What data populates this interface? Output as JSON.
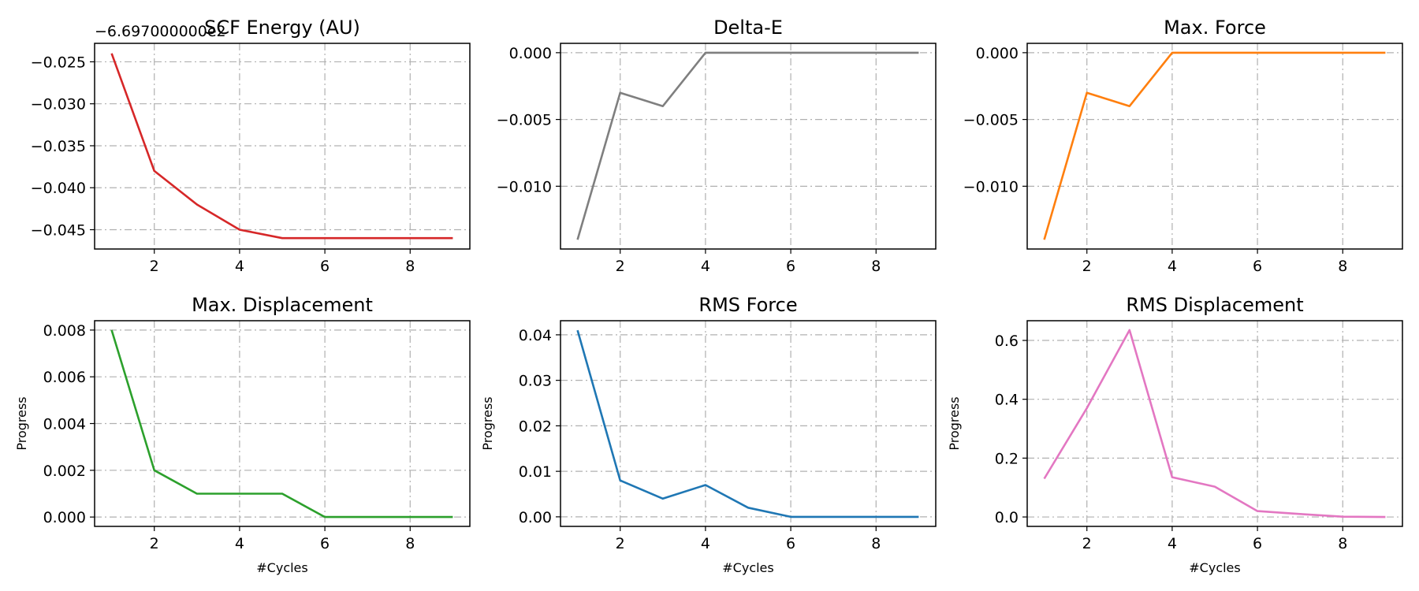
{
  "chart_data": [
    {
      "type": "line",
      "title": "SCF Energy (AU)",
      "offset_text": "−6.697000000e2",
      "xlabel": "",
      "ylabel": "",
      "x": [
        1,
        2,
        3,
        4,
        5,
        6,
        7,
        8,
        9
      ],
      "series": [
        {
          "values": [
            -0.024,
            -0.038,
            -0.042,
            -0.045,
            -0.046,
            -0.046,
            -0.046,
            -0.046,
            -0.046
          ],
          "color": "#d62728"
        }
      ],
      "xlim": [
        0.6,
        9.4
      ],
      "ylim": [
        -0.0473,
        -0.0228
      ],
      "xticks": [
        2,
        4,
        6,
        8
      ],
      "xtick_labels": [
        "2",
        "4",
        "6",
        "8"
      ],
      "yticks": [
        -0.025,
        -0.03,
        -0.035,
        -0.04,
        -0.045
      ],
      "ytick_labels": [
        "−0.025",
        "−0.030",
        "−0.035",
        "−0.040",
        "−0.045"
      ],
      "grid": true
    },
    {
      "type": "line",
      "title": "Delta-E",
      "xlabel": "",
      "ylabel": "",
      "x": [
        1,
        2,
        3,
        4,
        5,
        6,
        7,
        8,
        9
      ],
      "series": [
        {
          "values": [
            -0.014,
            -0.003,
            -0.004,
            0,
            0,
            0,
            0,
            0,
            0
          ],
          "color": "#7f7f7f"
        }
      ],
      "xlim": [
        0.6,
        9.4
      ],
      "ylim": [
        -0.0147,
        0.0007
      ],
      "xticks": [
        2,
        4,
        6,
        8
      ],
      "xtick_labels": [
        "2",
        "4",
        "6",
        "8"
      ],
      "yticks": [
        0,
        -0.005,
        -0.01
      ],
      "ytick_labels": [
        "0.000",
        "−0.005",
        "−0.010"
      ],
      "grid": true
    },
    {
      "type": "line",
      "title": "Max. Force",
      "xlabel": "",
      "ylabel": "",
      "x": [
        1,
        2,
        3,
        4,
        5,
        6,
        7,
        8,
        9
      ],
      "series": [
        {
          "values": [
            -0.014,
            -0.003,
            -0.004,
            0,
            0,
            0,
            0,
            0,
            0
          ],
          "color": "#ff7f0e"
        }
      ],
      "xlim": [
        0.6,
        9.4
      ],
      "ylim": [
        -0.0147,
        0.0007
      ],
      "xticks": [
        2,
        4,
        6,
        8
      ],
      "xtick_labels": [
        "2",
        "4",
        "6",
        "8"
      ],
      "yticks": [
        0,
        -0.005,
        -0.01
      ],
      "ytick_labels": [
        "0.000",
        "−0.005",
        "−0.010"
      ],
      "grid": true
    },
    {
      "type": "line",
      "title": "Max. Displacement",
      "xlabel": "#Cycles",
      "ylabel": "Progress",
      "x": [
        1,
        2,
        3,
        4,
        5,
        6,
        7,
        8,
        9
      ],
      "series": [
        {
          "values": [
            0.008,
            0.002,
            0.001,
            0.001,
            0.001,
            0,
            0,
            0,
            0
          ],
          "color": "#2ca02c"
        }
      ],
      "xlim": [
        0.6,
        9.4
      ],
      "ylim": [
        -0.0004,
        0.0084
      ],
      "xticks": [
        2,
        4,
        6,
        8
      ],
      "xtick_labels": [
        "2",
        "4",
        "6",
        "8"
      ],
      "yticks": [
        0,
        0.002,
        0.004,
        0.006,
        0.008
      ],
      "ytick_labels": [
        "0.000",
        "0.002",
        "0.004",
        "0.006",
        "0.008"
      ],
      "grid": true
    },
    {
      "type": "line",
      "title": "RMS Force",
      "xlabel": "#Cycles",
      "ylabel": "Progress",
      "x": [
        1,
        2,
        3,
        4,
        5,
        6,
        7,
        8,
        9
      ],
      "series": [
        {
          "values": [
            0.041,
            0.008,
            0.004,
            0.007,
            0.002,
            0,
            0,
            0,
            0
          ],
          "color": "#1f77b4"
        }
      ],
      "xlim": [
        0.6,
        9.4
      ],
      "ylim": [
        -0.0021,
        0.0431
      ],
      "xticks": [
        2,
        4,
        6,
        8
      ],
      "xtick_labels": [
        "2",
        "4",
        "6",
        "8"
      ],
      "yticks": [
        0,
        0.01,
        0.02,
        0.03,
        0.04
      ],
      "ytick_labels": [
        "0.00",
        "0.01",
        "0.02",
        "0.03",
        "0.04"
      ],
      "grid": true
    },
    {
      "type": "line",
      "title": "RMS Displacement",
      "xlabel": "#Cycles",
      "ylabel": "Progress",
      "x": [
        1,
        2,
        3,
        4,
        5,
        6,
        7,
        8,
        9
      ],
      "series": [
        {
          "values": [
            0.13,
            0.37,
            0.635,
            0.135,
            0.103,
            0.02,
            0.01,
            0.001,
            0
          ],
          "color": "#e377c2"
        }
      ],
      "xlim": [
        0.6,
        9.4
      ],
      "ylim": [
        -0.032,
        0.667
      ],
      "xticks": [
        2,
        4,
        6,
        8
      ],
      "xtick_labels": [
        "2",
        "4",
        "6",
        "8"
      ],
      "yticks": [
        0,
        0.2,
        0.4,
        0.6
      ],
      "ytick_labels": [
        "0.0",
        "0.2",
        "0.4",
        "0.6"
      ],
      "grid": true
    }
  ]
}
